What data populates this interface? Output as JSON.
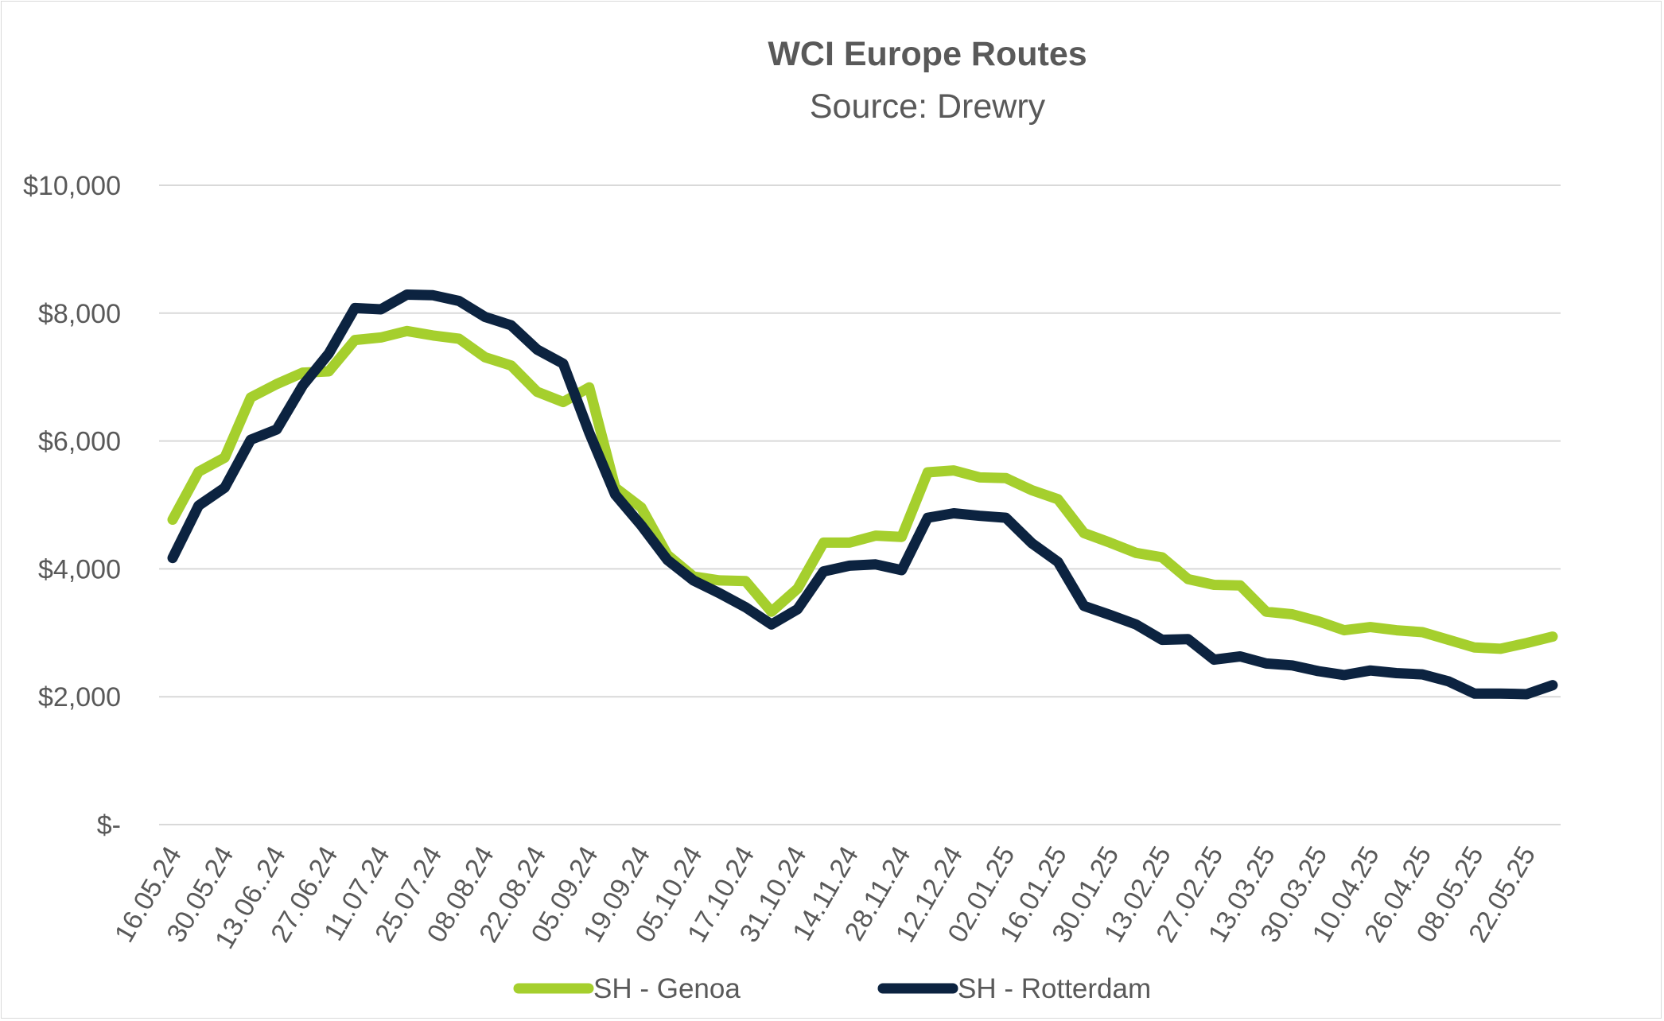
{
  "chart_data": {
    "type": "line",
    "title": "WCI Europe Routes",
    "subtitle": "Source: Drewry",
    "xlabel": "",
    "ylabel": "",
    "ylim": [
      0,
      10000
    ],
    "y_ticks": [
      {
        "value": 0,
        "label": "$-"
      },
      {
        "value": 2000,
        "label": "$2,000"
      },
      {
        "value": 4000,
        "label": "$4,000"
      },
      {
        "value": 6000,
        "label": "$6,000"
      },
      {
        "value": 8000,
        "label": "$8,000"
      },
      {
        "value": 10000,
        "label": "$10,000"
      }
    ],
    "grid": true,
    "legend_position": "bottom",
    "x_tick_labels": [
      "16.05.24",
      "30.05.24",
      "13.06..24",
      "27.06.24",
      "11.07.24",
      "25.07.24",
      "08.08.24",
      "22.08.24",
      "05.09.24",
      "19.09.24",
      "05.10.24",
      "17.10.24",
      "31.10.24",
      "14.11.24",
      "28.11.24",
      "12.12.24",
      "02.01.25",
      "16.01.25",
      "30.01.25",
      "13.02.25",
      "27.02.25",
      "13.03.25",
      "30.03.25",
      "10.04.25",
      "26.04.25",
      "08.05.25",
      "22.05.25"
    ],
    "series": [
      {
        "name": "SH - Genoa",
        "color": "#a5cf2d",
        "values": [
          4770,
          5520,
          5740,
          6680,
          6890,
          7070,
          7090,
          7580,
          7620,
          7720,
          7650,
          7600,
          7310,
          7180,
          6770,
          6610,
          6840,
          5270,
          4960,
          4220,
          3880,
          3820,
          3810,
          3330,
          3690,
          4410,
          4410,
          4520,
          4500,
          5510,
          5540,
          5430,
          5420,
          5230,
          5090,
          4560,
          4410,
          4250,
          4180,
          3840,
          3750,
          3740,
          3330,
          3290,
          3180,
          3040,
          3090,
          3040,
          3010,
          2890,
          2770,
          2750,
          2840,
          2940
        ]
      },
      {
        "name": "SH - Rotterdam",
        "color": "#0c2340",
        "values": [
          4170,
          4990,
          5270,
          6020,
          6180,
          6870,
          7370,
          8080,
          8060,
          8290,
          8280,
          8190,
          7940,
          7810,
          7430,
          7210,
          6130,
          5160,
          4680,
          4140,
          3820,
          3620,
          3400,
          3130,
          3370,
          3960,
          4050,
          4070,
          3980,
          4800,
          4870,
          4830,
          4800,
          4400,
          4110,
          3420,
          3280,
          3130,
          2890,
          2900,
          2580,
          2630,
          2520,
          2490,
          2400,
          2340,
          2410,
          2370,
          2350,
          2240,
          2050,
          2050,
          2040,
          2180
        ]
      }
    ]
  }
}
